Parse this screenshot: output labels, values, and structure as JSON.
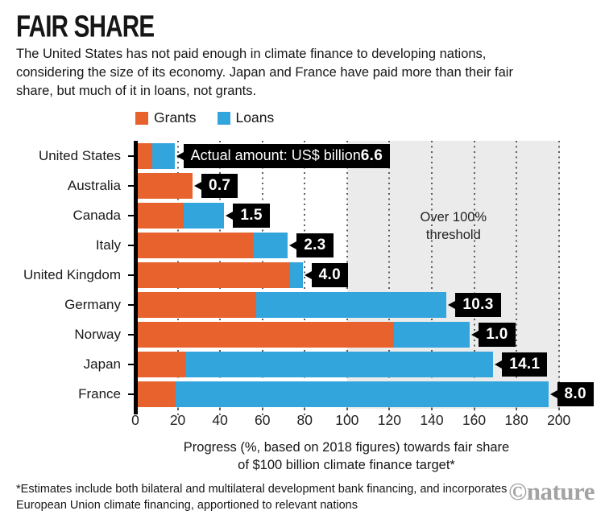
{
  "header": {
    "title": "FAIR SHARE",
    "subtitle": "The United States has not paid enough in climate finance to developing nations, considering the size of its economy. Japan and France have paid more than their fair share, but much of it in loans, not grants."
  },
  "legend": {
    "items": [
      {
        "label": "Grants",
        "color": "#e7622d"
      },
      {
        "label": "Loans",
        "color": "#33a5dd"
      }
    ]
  },
  "chart_data": {
    "type": "bar",
    "orientation": "horizontal",
    "stacked": true,
    "categories": [
      "United States",
      "Australia",
      "Canada",
      "Italy",
      "United Kingdom",
      "Germany",
      "Norway",
      "Japan",
      "France"
    ],
    "series": [
      {
        "name": "Grants",
        "color": "#e7622d",
        "values": [
          8,
          27,
          23,
          56,
          73,
          57,
          122,
          23.5,
          19
        ]
      },
      {
        "name": "Loans",
        "color": "#33a5dd",
        "values": [
          10.5,
          0,
          19,
          16,
          6,
          90,
          36,
          145.5,
          176
        ]
      }
    ],
    "totals_percent": [
      18.5,
      27,
      42,
      72,
      79,
      147,
      158,
      169,
      195
    ],
    "actual_amounts_usd_billion": [
      "6.6",
      "0.7",
      "1.5",
      "2.3",
      "4.0",
      "10.3",
      "1.0",
      "14.1",
      "8.0"
    ],
    "first_callout_prefix": "Actual amount: US$ billion ",
    "xlabel": "Progress (%, based on 2018 figures) towards fair share of $100 billion climate finance target*",
    "xticks": [
      0,
      20,
      40,
      60,
      80,
      100,
      120,
      140,
      160,
      180,
      200
    ],
    "xlim": [
      0,
      200.5
    ],
    "grid": "dotted-vertical",
    "threshold_region": {
      "start": 100,
      "label": "Over 100% threshold",
      "color": "#ebebeb"
    }
  },
  "footnote": "*Estimates include both bilateral and multilateral development bank financing, and incorporates European Union climate financing, apportioned to relevant nations",
  "logo": "©nature"
}
